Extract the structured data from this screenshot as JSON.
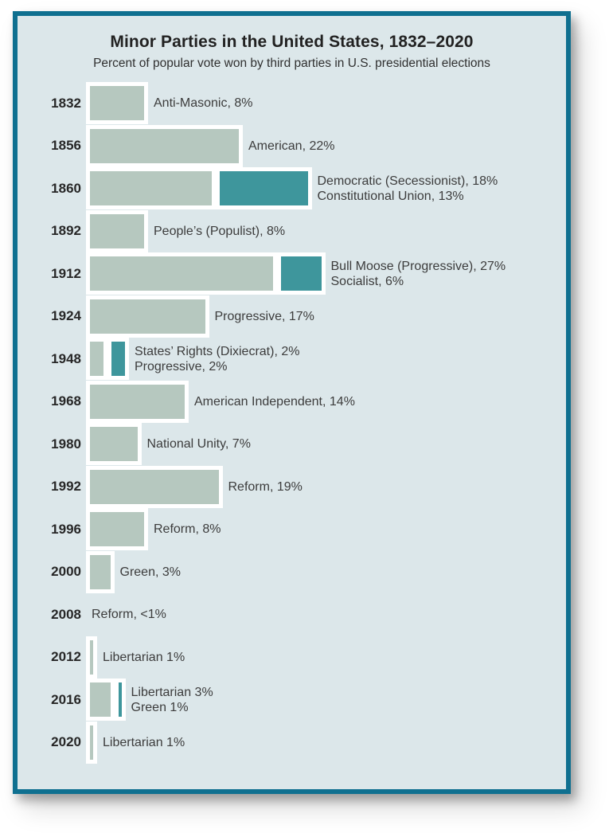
{
  "panel": {
    "title": "Minor Parties in the United States, 1832–2020",
    "subtitle": "Percent of popular vote won by third parties in U.S. presidential elections"
  },
  "colors": {
    "frame_border": "#0f7090",
    "panel_background": "#dce7ea",
    "bar_primary_sage": "#b6c8bf",
    "bar_secondary_teal": "#3e969c",
    "bar_outline": "#ffffff"
  },
  "chart_data": {
    "type": "bar",
    "orientation": "horizontal",
    "unit": "percent of popular vote",
    "title": "Minor Parties in the United States, 1832–2020",
    "subtitle": "Percent of popular vote won by third parties in U.S. presidential elections",
    "value_range": [
      0,
      33
    ],
    "grid": false,
    "legend": false,
    "rows": [
      {
        "year": "1832",
        "parties": [
          {
            "name": "Anti-Masonic",
            "percent": 8,
            "label": "Anti-Masonic, 8%",
            "color": "sage"
          }
        ]
      },
      {
        "year": "1856",
        "parties": [
          {
            "name": "American",
            "percent": 22,
            "label": "American, 22%",
            "color": "sage"
          }
        ]
      },
      {
        "year": "1860",
        "parties": [
          {
            "name": "Democratic (Secessionist)",
            "percent": 18,
            "label": "Democratic (Secessionist), 18%",
            "color": "sage"
          },
          {
            "name": "Constitutional Union",
            "percent": 13,
            "label": "Constitutional Union, 13%",
            "color": "teal"
          }
        ]
      },
      {
        "year": "1892",
        "parties": [
          {
            "name": "People’s (Populist)",
            "percent": 8,
            "label": "People’s (Populist), 8%",
            "color": "sage"
          }
        ]
      },
      {
        "year": "1912",
        "parties": [
          {
            "name": "Bull Moose (Progressive)",
            "percent": 27,
            "label": "Bull Moose (Progressive), 27%",
            "color": "sage"
          },
          {
            "name": "Socialist",
            "percent": 6,
            "label": "Socialist, 6%",
            "color": "teal"
          }
        ]
      },
      {
        "year": "1924",
        "parties": [
          {
            "name": "Progressive",
            "percent": 17,
            "label": "Progressive, 17%",
            "color": "sage"
          }
        ]
      },
      {
        "year": "1948",
        "parties": [
          {
            "name": "States’ Rights (Dixiecrat)",
            "percent": 2,
            "label": "States’ Rights (Dixiecrat), 2%",
            "color": "sage"
          },
          {
            "name": "Progressive",
            "percent": 2,
            "label": "Progressive, 2%",
            "color": "teal"
          }
        ]
      },
      {
        "year": "1968",
        "parties": [
          {
            "name": "American Independent",
            "percent": 14,
            "label": "American Independent, 14%",
            "color": "sage"
          }
        ]
      },
      {
        "year": "1980",
        "parties": [
          {
            "name": "National Unity",
            "percent": 7,
            "label": "National Unity, 7%",
            "color": "sage"
          }
        ]
      },
      {
        "year": "1992",
        "parties": [
          {
            "name": "Reform",
            "percent": 19,
            "label": "Reform, 19%",
            "color": "sage"
          }
        ]
      },
      {
        "year": "1996",
        "parties": [
          {
            "name": "Reform",
            "percent": 8,
            "label": "Reform, 8%",
            "color": "sage"
          }
        ]
      },
      {
        "year": "2000",
        "parties": [
          {
            "name": "Green",
            "percent": 3,
            "label": "Green, 3%",
            "color": "sage"
          }
        ]
      },
      {
        "year": "2008",
        "parties": [
          {
            "name": "Reform",
            "percent": 0.5,
            "label": "Reform, <1%",
            "color": "sage"
          }
        ]
      },
      {
        "year": "2012",
        "parties": [
          {
            "name": "Libertarian",
            "percent": 1,
            "label": "Libertarian 1%",
            "color": "sage"
          }
        ]
      },
      {
        "year": "2016",
        "parties": [
          {
            "name": "Libertarian",
            "percent": 3,
            "label": "Libertarian 3%",
            "color": "sage"
          },
          {
            "name": "Green",
            "percent": 1,
            "label": "Green 1%",
            "color": "teal"
          }
        ]
      },
      {
        "year": "2020",
        "parties": [
          {
            "name": "Libertarian",
            "percent": 1,
            "label": "Libertarian 1%",
            "color": "sage"
          }
        ]
      }
    ]
  }
}
